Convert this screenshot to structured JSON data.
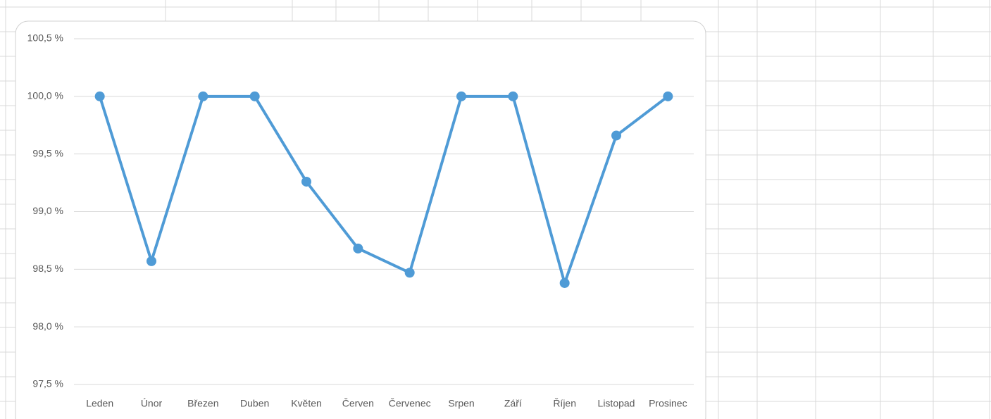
{
  "chart_data": {
    "type": "line",
    "categories": [
      "Leden",
      "Únor",
      "Březen",
      "Duben",
      "Květen",
      "Červen",
      "Červenec",
      "Srpen",
      "Září",
      "Říjen",
      "Listopad",
      "Prosinec"
    ],
    "series": [
      {
        "color": "#4f9bd6",
        "values": [
          100.0,
          98.57,
          100.0,
          100.0,
          99.26,
          98.68,
          98.47,
          100.0,
          100.0,
          98.38,
          99.66,
          100.0
        ]
      }
    ],
    "ylim": [
      97.5,
      100.5
    ],
    "yticks": [
      {
        "value": 97.5,
        "label": "97,5 %"
      },
      {
        "value": 98.0,
        "label": "98,0 %"
      },
      {
        "value": 98.5,
        "label": "98,5 %"
      },
      {
        "value": 99.0,
        "label": "99,0 %"
      },
      {
        "value": 99.5,
        "label": "99,5 %"
      },
      {
        "value": 100.0,
        "label": "100,0 %"
      },
      {
        "value": 100.5,
        "label": "100,5 %"
      }
    ],
    "grid": true
  }
}
